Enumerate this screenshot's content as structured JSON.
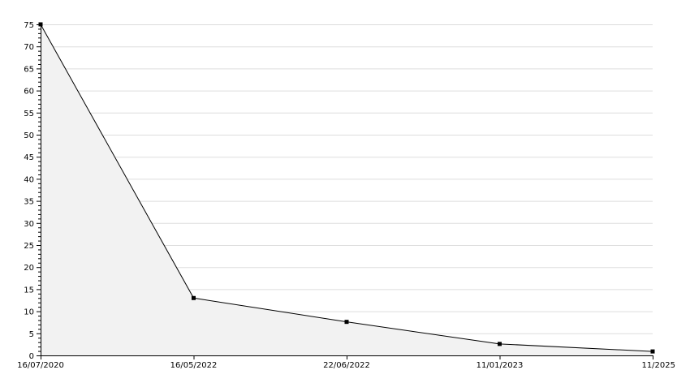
{
  "chart_data": {
    "type": "area",
    "title": "",
    "xlabel": "",
    "ylabel": "",
    "categories": [
      "16/07/2020",
      "16/05/2022",
      "22/06/2022",
      "11/01/2023",
      "11/2025"
    ],
    "series": [
      {
        "values": [
          75,
          13,
          7.6,
          2.6,
          0.9
        ]
      }
    ],
    "ylim": [
      0,
      75
    ],
    "yticks": [
      0,
      5,
      10,
      15,
      20,
      25,
      30,
      35,
      40,
      45,
      50,
      55,
      60,
      65,
      70,
      75
    ],
    "ytick_labels": [
      "0",
      "5",
      "10",
      "15",
      "20",
      "25",
      "30",
      "35",
      "40",
      "45",
      "50",
      "55",
      "60",
      "65",
      "70",
      "75"
    ],
    "grid": true,
    "legend": "none",
    "colors": {
      "line": "#000000",
      "fill": "#f2f2f2",
      "grid": "#dddddd",
      "marker": "#000000"
    }
  }
}
